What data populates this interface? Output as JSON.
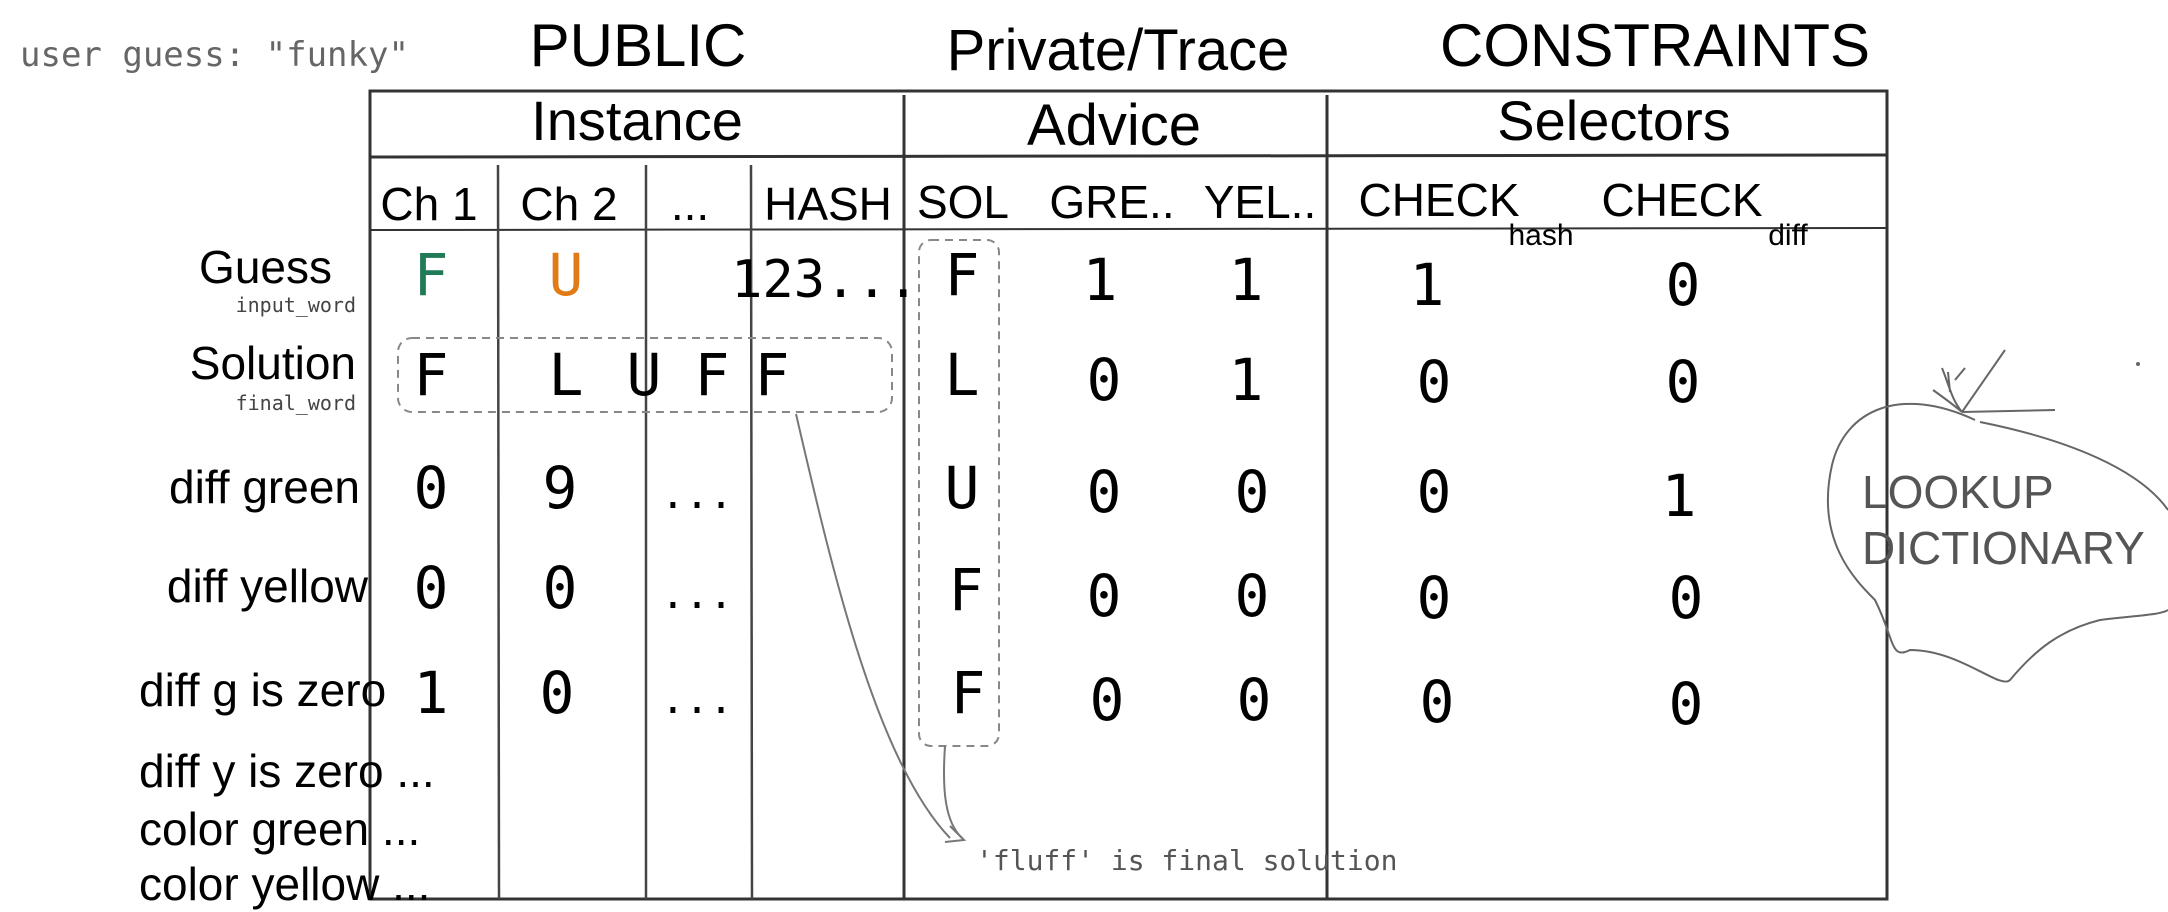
{
  "note_user_guess": "user guess: \"funky\"",
  "sections": {
    "public": "PUBLIC",
    "private": "Private/Trace",
    "constraints": "CONSTRAINTS"
  },
  "groups": {
    "instance": "Instance",
    "advice": "Advice",
    "selectors": "Selectors"
  },
  "columns": {
    "ch1": "Ch 1",
    "ch2": "Ch 2",
    "ellipsis": "...",
    "hash": "HASH",
    "sol": "SOL",
    "gre": "GRE..",
    "yel": "YEL..",
    "check": "CHECK",
    "hash_sub": "hash",
    "check2": "CHECK",
    "diff_sub": "diff"
  },
  "rows": {
    "guess": "Guess",
    "guess_sub": "input_word",
    "solution": "Solution",
    "solution_sub": "final_word",
    "diff_green": "diff green",
    "diff_yellow": "diff yellow",
    "diff_g_zero": "diff g is zero",
    "diff_y_zero": "diff y is zero ...",
    "color_green": "color green ...",
    "color_yellow": "color yellow ..."
  },
  "colors": {
    "guess_f": "#1f7a55",
    "guess_u": "#e07b16",
    "ink": "#000000",
    "pencil": "#555555",
    "table_line": "#333333"
  },
  "instance_cells": {
    "guess": [
      "F",
      "U",
      "",
      "123..."
    ],
    "solution": [
      "F",
      "L",
      "U",
      "F",
      "F"
    ],
    "diff_green": [
      "0",
      "9",
      "..."
    ],
    "diff_yellow": [
      "0",
      "0",
      "..."
    ],
    "diff_g_zero": [
      "1",
      "0",
      "..."
    ]
  },
  "advice_cells": {
    "sol": [
      "F",
      "L",
      "U",
      "F",
      "F"
    ],
    "gre": [
      "1",
      "0",
      "0",
      "0",
      "0"
    ],
    "yel": [
      "1",
      "1",
      "0",
      "0",
      "0"
    ]
  },
  "selector_cells": {
    "check_hash": [
      "1",
      "0",
      "0",
      "0",
      "0"
    ],
    "check_diff": [
      "0",
      "0",
      "1",
      "0",
      "0"
    ]
  },
  "annotation": "'fluff' is final solution",
  "lookup": [
    "LOOKUP",
    "DICTIONARY"
  ]
}
